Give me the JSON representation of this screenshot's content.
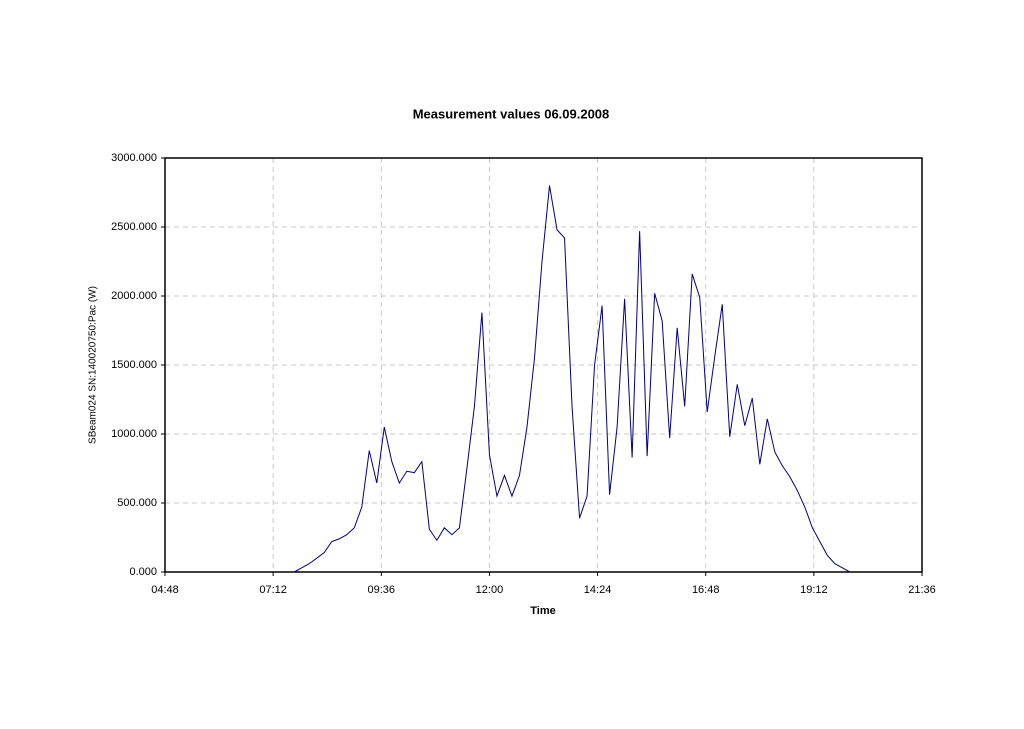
{
  "chart_data": {
    "type": "line",
    "title": "Measurement values 06.09.2008",
    "x_label": "Time",
    "y_label": "SBeam024 SN:140020750:Pac (W)",
    "x": [
      "07:40",
      "07:50",
      "08:00",
      "08:10",
      "08:20",
      "08:30",
      "08:40",
      "08:50",
      "09:00",
      "09:10",
      "09:20",
      "09:30",
      "09:40",
      "09:50",
      "10:00",
      "10:10",
      "10:20",
      "10:30",
      "10:40",
      "10:50",
      "11:00",
      "11:10",
      "11:20",
      "11:30",
      "11:40",
      "11:50",
      "12:00",
      "12:10",
      "12:20",
      "12:30",
      "12:40",
      "12:50",
      "13:00",
      "13:10",
      "13:20",
      "13:30",
      "13:40",
      "13:50",
      "14:00",
      "14:10",
      "14:20",
      "14:30",
      "14:40",
      "14:50",
      "15:00",
      "15:10",
      "15:20",
      "15:30",
      "15:40",
      "15:50",
      "16:00",
      "16:10",
      "16:20",
      "16:30",
      "16:40",
      "16:50",
      "17:00",
      "17:10",
      "17:20",
      "17:30",
      "17:40",
      "17:50",
      "18:00",
      "18:10",
      "18:20",
      "18:30",
      "18:40",
      "18:50",
      "19:00",
      "19:10",
      "19:20",
      "19:30",
      "19:40",
      "19:50",
      "20:00"
    ],
    "values": [
      0,
      30,
      60,
      100,
      140,
      220,
      240,
      270,
      320,
      470,
      880,
      645,
      1050,
      800,
      645,
      730,
      720,
      800,
      310,
      230,
      320,
      270,
      320,
      750,
      1200,
      1880,
      850,
      550,
      700,
      550,
      700,
      1050,
      1550,
      2250,
      2800,
      2480,
      2420,
      1200,
      390,
      550,
      1500,
      1930,
      560,
      1050,
      1980,
      830,
      2470,
      840,
      2020,
      1820,
      970,
      1770,
      1200,
      2160,
      1990,
      1160,
      1560,
      1940,
      980,
      1360,
      1060,
      1260,
      780,
      1110,
      870,
      770,
      690,
      590,
      470,
      320,
      220,
      120,
      60,
      30,
      0
    ],
    "color": "#000080",
    "xlim": [
      "04:48",
      "21:36"
    ],
    "xticks": [
      "04:48",
      "07:12",
      "09:36",
      "12:00",
      "14:24",
      "16:48",
      "19:12",
      "21:36"
    ],
    "ylim": [
      0,
      3000
    ],
    "yticks": [
      {
        "value": 0,
        "label": "0.000"
      },
      {
        "value": 500,
        "label": "500.000"
      },
      {
        "value": 1000,
        "label": "1000.000"
      },
      {
        "value": 1500,
        "label": "1500.000"
      },
      {
        "value": 2000,
        "label": "2000.000"
      },
      {
        "value": 2500,
        "label": "2500.000"
      },
      {
        "value": 3000,
        "label": "3000.000"
      }
    ],
    "grid": true
  }
}
